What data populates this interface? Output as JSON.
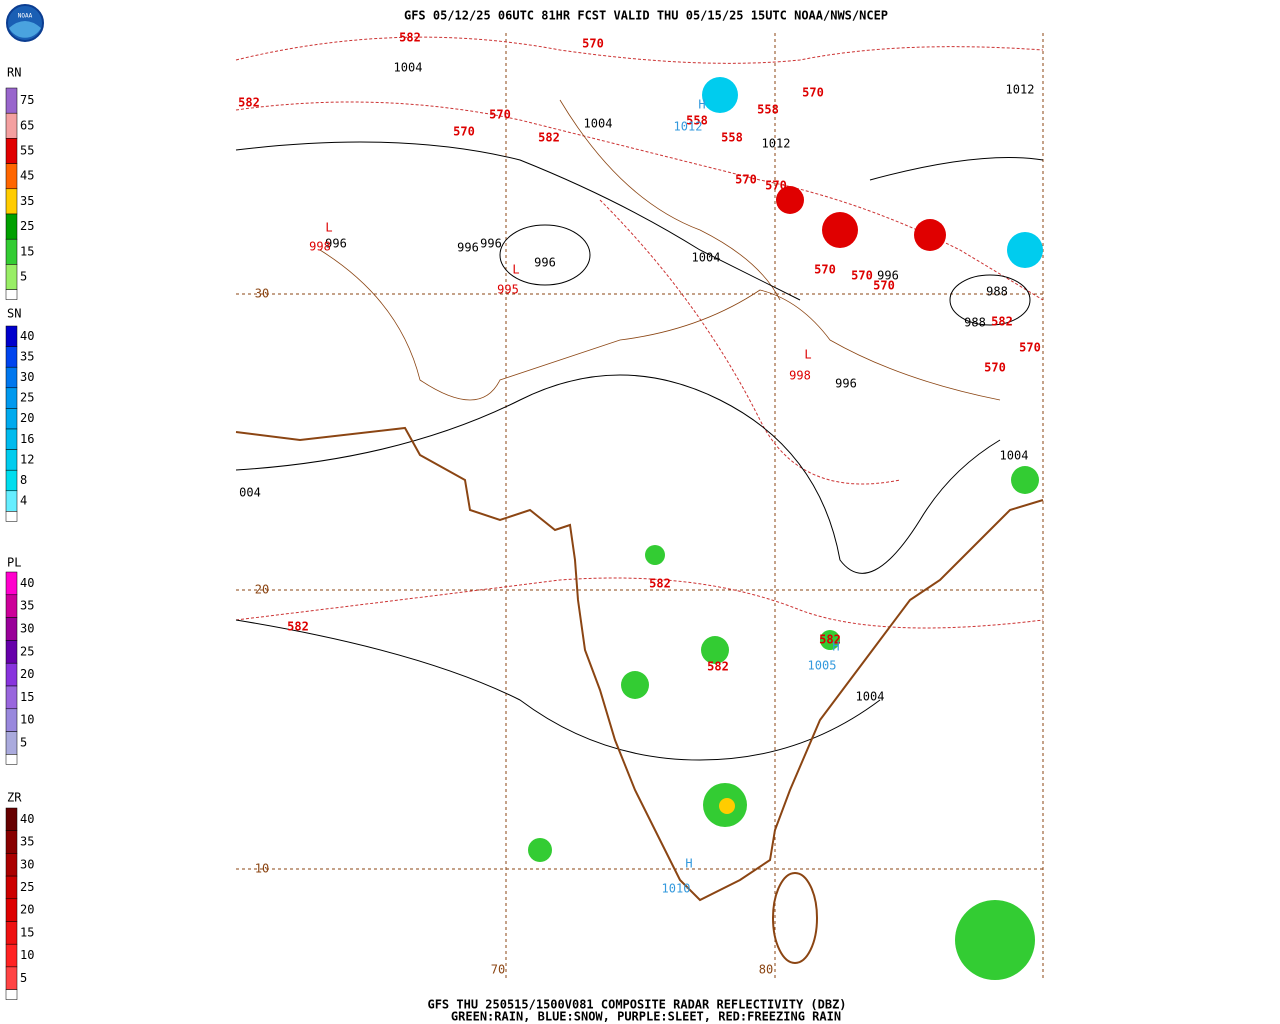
{
  "header": {
    "title": "GFS 05/12/25 06UTC 81HR FCST VALID THU 05/15/25 15UTC NOAA/NWS/NCEP",
    "logo": "NOAA"
  },
  "footer": {
    "line1": "GFS THU 250515/1500V081 COMPOSITE RADAR REFLECTIVITY (DBZ)",
    "line2": "GREEN:RAIN, BLUE:SNOW, PURPLE:SLEET, RED:FREEZING RAIN"
  },
  "legends": [
    {
      "label": "RN",
      "ticks": [
        "75",
        "65",
        "55",
        "45",
        "35",
        "25",
        "15",
        "5"
      ],
      "colors": [
        "#9966cc",
        "#f4a0a0",
        "#e00000",
        "#ff6600",
        "#ffcc00",
        "#00a000",
        "#33cc33",
        "#99ee66"
      ]
    },
    {
      "label": "SN",
      "ticks": [
        "40",
        "35",
        "30",
        "25",
        "20",
        "16",
        "12",
        "8",
        "4"
      ],
      "colors": [
        "#0000cc",
        "#0044ee",
        "#0077ee",
        "#0099ee",
        "#00aaee",
        "#00bbee",
        "#00ccee",
        "#00ddee",
        "#66eeff"
      ]
    },
    {
      "label": "PL",
      "ticks": [
        "40",
        "35",
        "30",
        "25",
        "20",
        "15",
        "10",
        "5"
      ],
      "colors": [
        "#ff00cc",
        "#cc0099",
        "#990099",
        "#6600aa",
        "#8833dd",
        "#9966dd",
        "#9988dd",
        "#aaaadd"
      ]
    },
    {
      "label": "ZR",
      "ticks": [
        "40",
        "35",
        "30",
        "25",
        "20",
        "15",
        "10",
        "5"
      ],
      "colors": [
        "#660000",
        "#880000",
        "#aa0000",
        "#cc0000",
        "#dd0000",
        "#ee1111",
        "#ff2222",
        "#ff4444"
      ]
    }
  ],
  "map": {
    "isobar_labels": [
      "1004",
      "1004",
      "1012",
      "1012",
      "996",
      "996",
      "996",
      "996",
      "1004",
      "996",
      "988",
      "988",
      "996",
      "1004",
      "004",
      "1004"
    ],
    "height_labels": [
      "582",
      "570",
      "582",
      "570",
      "570",
      "582",
      "558",
      "558",
      "558",
      "570",
      "570",
      "570",
      "570",
      "570",
      "570",
      "582",
      "570",
      "570",
      "582",
      "582",
      "582",
      "582"
    ],
    "low_centers": [
      {
        "symbol": "L",
        "value": "998"
      },
      {
        "symbol": "L",
        "value": "995"
      },
      {
        "symbol": "L",
        "value": "998"
      }
    ],
    "high_centers": [
      {
        "symbol": "H",
        "value": "1012"
      },
      {
        "symbol": "H",
        "value": "1005"
      },
      {
        "symbol": "H",
        "value": "1010"
      }
    ],
    "grid_labels": [
      "30",
      "20",
      "10",
      "70",
      "80"
    ]
  }
}
